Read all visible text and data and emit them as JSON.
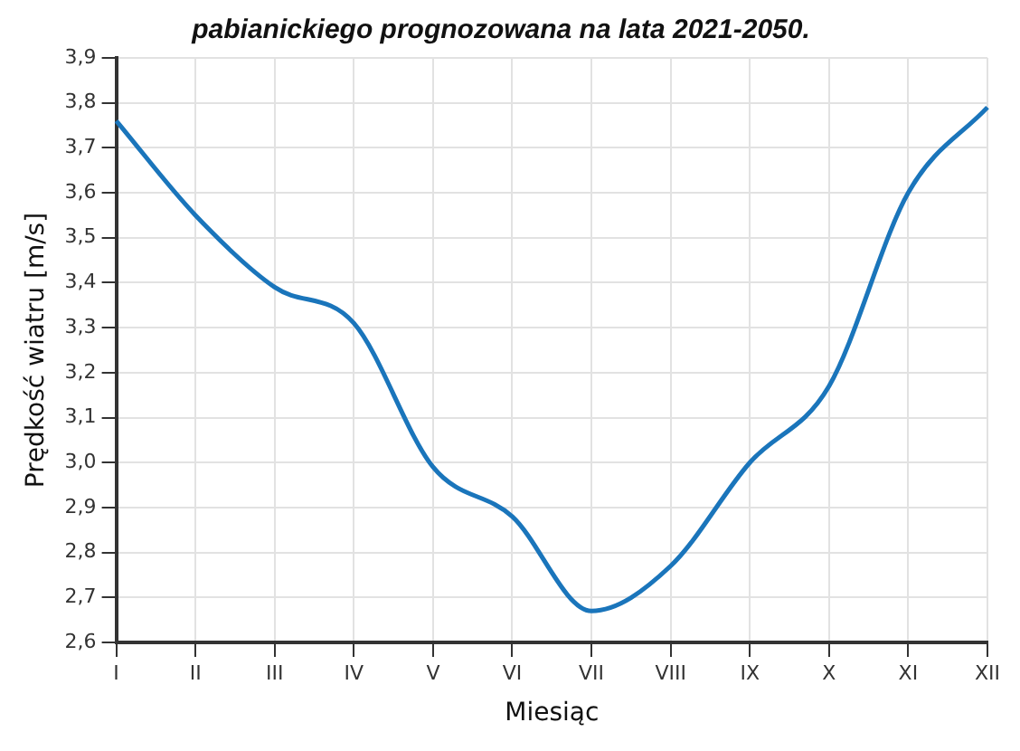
{
  "chart_data": {
    "type": "line",
    "title": "pabianickiego prognozowana na lata 2021-2050.",
    "xlabel": "Miesiąc",
    "ylabel": "Prędkość wiatru [m/s]",
    "categories": [
      "I",
      "II",
      "III",
      "IV",
      "V",
      "VI",
      "VII",
      "VIII",
      "IX",
      "X",
      "XI",
      "XII"
    ],
    "series": [
      {
        "color": "#1a75bb",
        "values": [
          3.76,
          3.55,
          3.39,
          3.31,
          2.99,
          2.88,
          2.67,
          2.77,
          3.0,
          3.17,
          3.6,
          3.79
        ]
      }
    ],
    "ylim": [
      2.6,
      3.9
    ],
    "yticks": [
      {
        "value": 2.6,
        "label": "2,6"
      },
      {
        "value": 2.7,
        "label": "2,7"
      },
      {
        "value": 2.8,
        "label": "2,8"
      },
      {
        "value": 2.9,
        "label": "2,9"
      },
      {
        "value": 3.0,
        "label": "3,0"
      },
      {
        "value": 3.1,
        "label": "3,1"
      },
      {
        "value": 3.2,
        "label": "3,2"
      },
      {
        "value": 3.3,
        "label": "3,3"
      },
      {
        "value": 3.4,
        "label": "3,4"
      },
      {
        "value": 3.5,
        "label": "3,5"
      },
      {
        "value": 3.6,
        "label": "3,6"
      },
      {
        "value": 3.7,
        "label": "3,7"
      },
      {
        "value": 3.8,
        "label": "3,8"
      },
      {
        "value": 3.9,
        "label": "3,9"
      }
    ],
    "grid": true,
    "legend": false,
    "marker": "none",
    "line_style": "solid"
  }
}
